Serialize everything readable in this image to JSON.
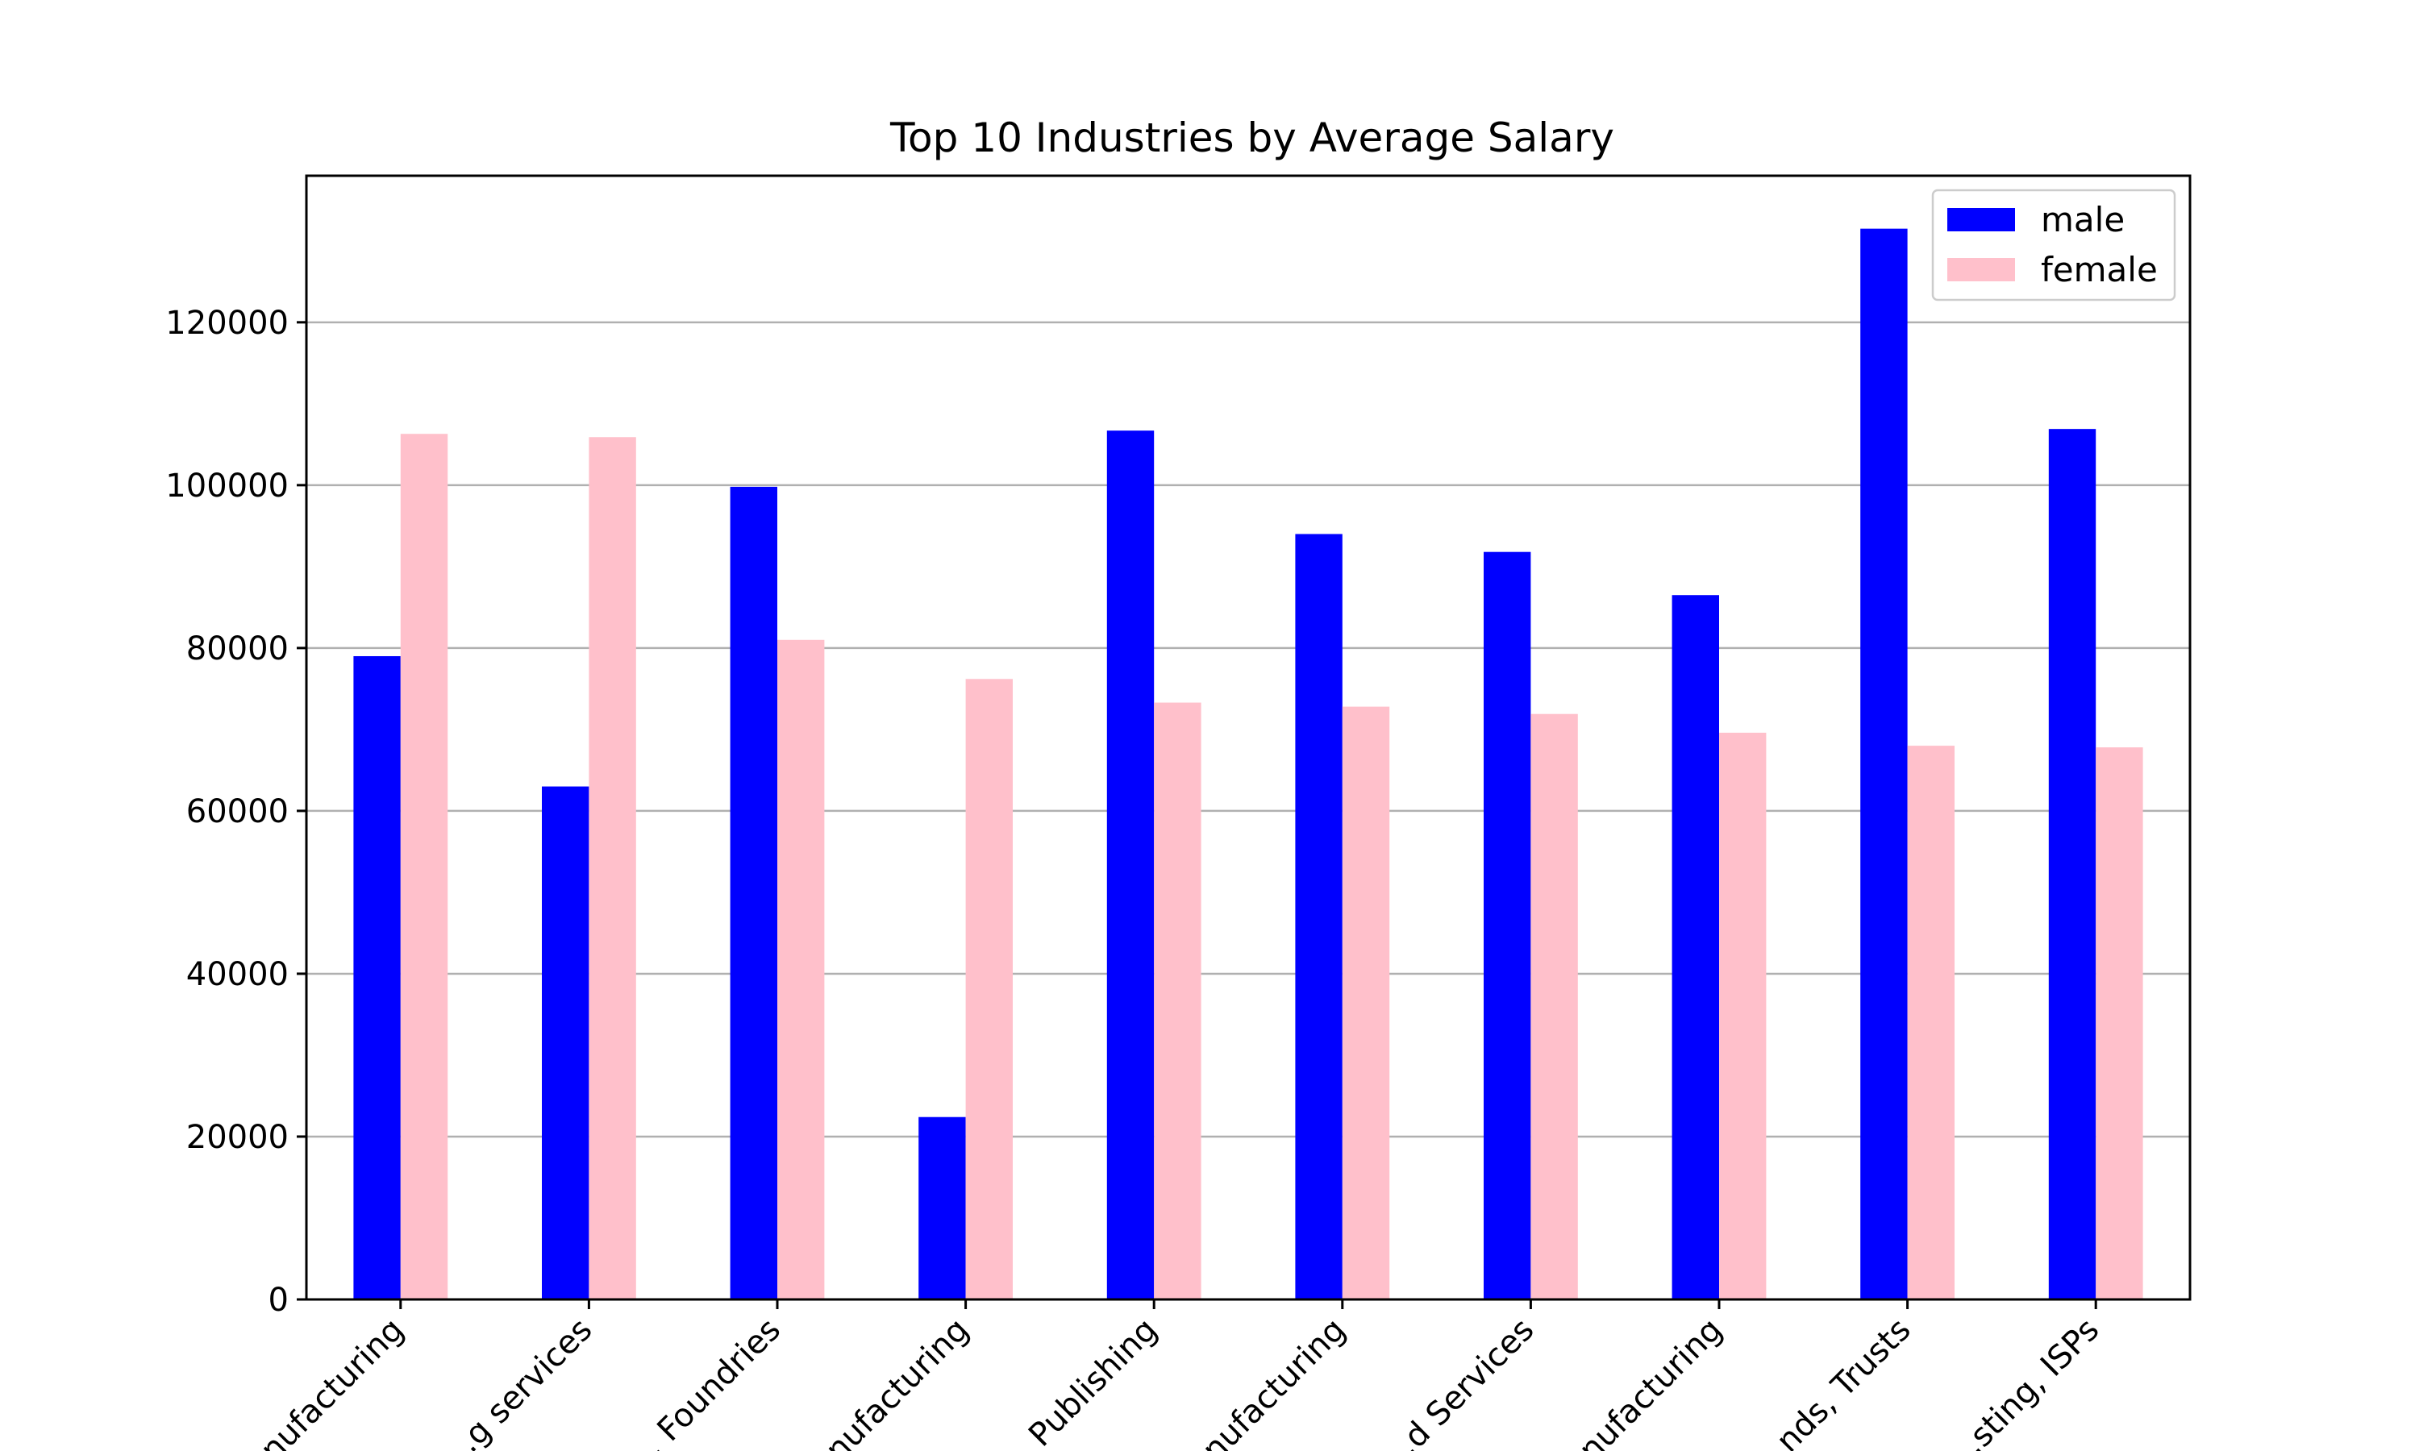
{
  "chart_data": {
    "type": "bar",
    "title": "Top 10 Industries by Average Salary",
    "xlabel": "",
    "ylabel": "",
    "categories": [
      "...nufacturing",
      "...g services",
      "... Foundries",
      "...nufacturing",
      "Publishing",
      "...nufacturing",
      "...d Services",
      "...nufacturing",
      "...nds, Trusts",
      "...sting, ISPs"
    ],
    "series": [
      {
        "name": "male",
        "color": "#0000ff",
        "values": [
          79000,
          63000,
          99800,
          22400,
          106700,
          94000,
          91800,
          86500,
          131500,
          106900
        ]
      },
      {
        "name": "female",
        "color": "#ffc0cb",
        "values": [
          106300,
          105900,
          81000,
          76200,
          73300,
          72800,
          71900,
          69600,
          68000,
          67800
        ]
      }
    ],
    "ylim": [
      0,
      138000
    ],
    "yticks": [
      0,
      20000,
      40000,
      60000,
      80000,
      100000,
      120000
    ],
    "grid": "y",
    "legend": "top-right"
  }
}
